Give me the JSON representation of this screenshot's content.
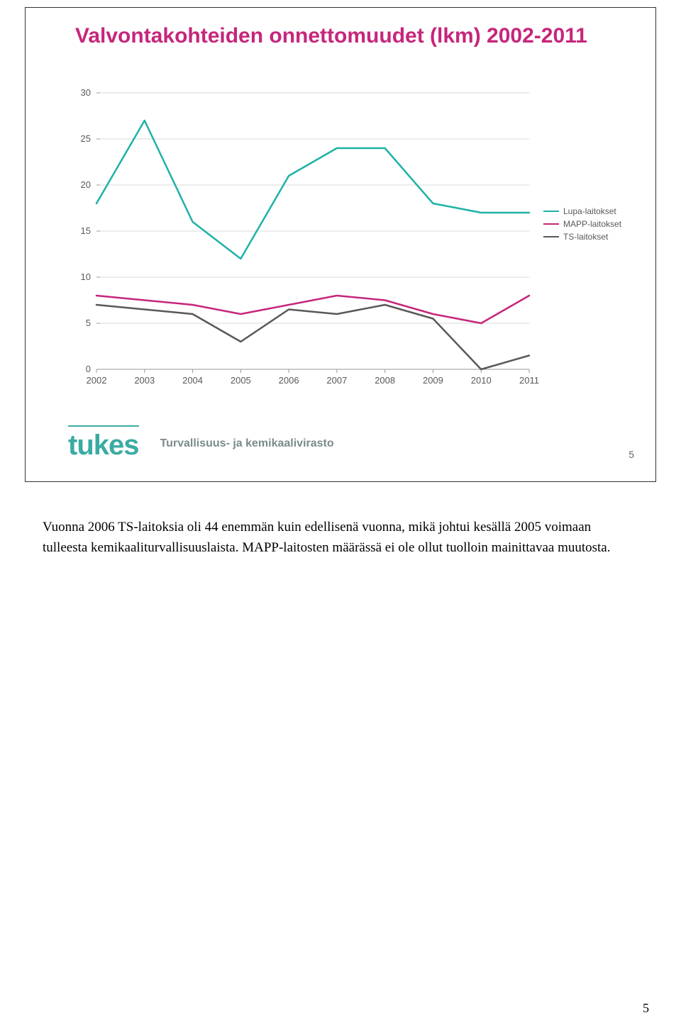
{
  "slide": {
    "title": "Valvontakohteiden onnettomuudet (lkm) 2002-2011",
    "slide_number": "5",
    "brand_name": "tukes",
    "brand_subtitle": "Turvallisuus- ja kemikaalivirasto"
  },
  "chart": {
    "type": "line",
    "years": [
      "2002",
      "2003",
      "2004",
      "2005",
      "2006",
      "2007",
      "2008",
      "2009",
      "2010",
      "2011"
    ],
    "ylim": [
      0,
      30
    ],
    "ytick_step": 5,
    "axis_label_fontsize": 13,
    "axis_label_color": "#595959",
    "grid_color": "#d9d9d9",
    "background_color": "#ffffff",
    "line_width": 2.5,
    "series": [
      {
        "name": "Lupa-laitokset",
        "color": "#1eb2a6",
        "values": [
          18,
          27,
          16,
          12,
          21,
          24,
          24,
          18,
          17,
          17
        ]
      },
      {
        "name": "MAPP-laitokset",
        "color": "#c6267c",
        "values": [
          8,
          7.5,
          7,
          6,
          7,
          8,
          7.5,
          6,
          5,
          8
        ]
      },
      {
        "name": "TS-laitokset",
        "color": "#595959",
        "values": [
          7,
          6.5,
          6,
          3,
          6.5,
          6,
          7,
          5.5,
          0,
          1.5
        ]
      }
    ]
  },
  "legend": {
    "items": [
      {
        "label": "Lupa-laitokset",
        "color": "#1eb2a6"
      },
      {
        "label": "MAPP-laitokset",
        "color": "#c6267c"
      },
      {
        "label": "TS-laitokset",
        "color": "#595959"
      }
    ]
  },
  "body_text": "Vuonna 2006 TS-laitoksia oli 44 enemmän kuin edellisenä vuonna, mikä johtui kesällä 2005 voimaan tulleesta kemikaaliturvallisuuslaista. MAPP-laitosten määrässä ei ole ollut tuolloin mainittavaa muutosta.",
  "page_number": "5"
}
